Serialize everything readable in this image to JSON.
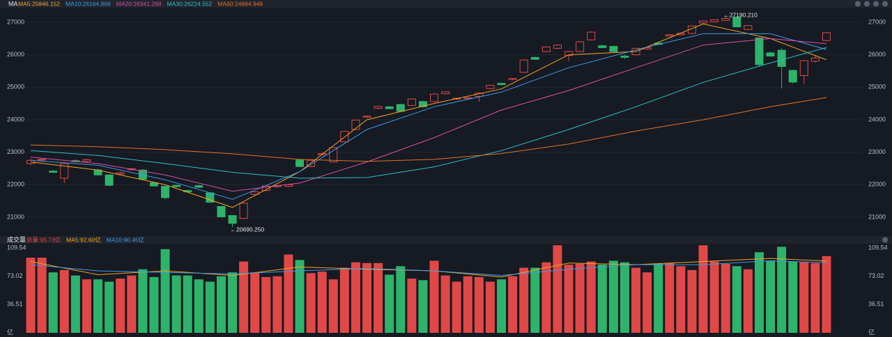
{
  "chart_data": [
    {
      "type": "candlestick",
      "title": "MA",
      "xlim": [
        -0.5,
        71.5
      ],
      "ylim": [
        20440,
        27430
      ],
      "yticks": [
        21000,
        22000,
        23000,
        24000,
        25000,
        26000,
        27000
      ],
      "grid": true,
      "up_color": "#e04848",
      "down_color": "#2eb36b",
      "open": [
        22650,
        22760,
        22420,
        22200,
        22740,
        22720,
        22450,
        22300,
        22330,
        22460,
        22450,
        22060,
        21950,
        21980,
        21820,
        21970,
        21750,
        21330,
        21050,
        20960,
        21700,
        21820,
        21940,
        21950,
        22760,
        22560,
        22920,
        22700,
        23320,
        23700,
        24080,
        24350,
        24400,
        24470,
        24440,
        24560,
        24560,
        24800,
        24640,
        24650,
        24720,
        24960,
        25120,
        25240,
        25460,
        25920,
        26100,
        26200,
        25980,
        26100,
        26460,
        26280,
        26260,
        25960,
        26000,
        26180,
        26360,
        26580,
        26620,
        26660,
        26980,
        27020,
        27060,
        27160,
        26780,
        26520,
        26060,
        26140,
        25520,
        25360,
        25800,
        26440
      ],
      "high": [
        22800,
        22800,
        22450,
        22700,
        22780,
        22800,
        22500,
        22320,
        22400,
        22520,
        22480,
        22080,
        21980,
        22000,
        21850,
        22000,
        21760,
        21340,
        21060,
        21450,
        21800,
        21980,
        21990,
        22020,
        22780,
        22770,
        22980,
        23160,
        23660,
        24010,
        24130,
        24430,
        24420,
        24490,
        24660,
        24590,
        24810,
        24880,
        24680,
        24700,
        24840,
        25080,
        25140,
        25290,
        25860,
        25940,
        26260,
        26320,
        26120,
        26420,
        26720,
        26300,
        26280,
        26000,
        26220,
        26240,
        26380,
        26640,
        26680,
        26910,
        27060,
        27090,
        27190.21,
        27170,
        26920,
        26540,
        26100,
        26200,
        25540,
        25840,
        25980,
        26700
      ],
      "low": [
        22600,
        22700,
        22360,
        22050,
        22680,
        22680,
        22280,
        21950,
        22300,
        22440,
        22150,
        21940,
        21550,
        21920,
        21760,
        21900,
        21440,
        20990,
        20690.25,
        20940,
        21680,
        21800,
        21900,
        21930,
        22540,
        22540,
        22900,
        22680,
        23300,
        23680,
        24060,
        24330,
        24320,
        24240,
        24420,
        24380,
        24540,
        24780,
        24600,
        24620,
        24550,
        24940,
        25060,
        25220,
        25440,
        25840,
        26080,
        26180,
        25800,
        26080,
        26440,
        26200,
        26080,
        25880,
        25980,
        26160,
        26300,
        26560,
        26600,
        26640,
        26960,
        27000,
        27040,
        26840,
        26760,
        25660,
        25940,
        24960,
        25120,
        25100,
        25760,
        26420
      ],
      "close": [
        22750,
        22780,
        22380,
        22650,
        22710,
        22770,
        22300,
        21980,
        22370,
        22490,
        22170,
        21960,
        21600,
        21940,
        21780,
        21920,
        21460,
        21010,
        20810,
        21430,
        21780,
        21960,
        21970,
        22000,
        22560,
        22750,
        22960,
        23140,
        23640,
        23990,
        24110,
        24410,
        24340,
        24260,
        24640,
        24400,
        24790,
        24860,
        24660,
        24680,
        24820,
        25060,
        25080,
        25270,
        25840,
        25860,
        26240,
        26300,
        26100,
        26400,
        26700,
        26220,
        26100,
        25920,
        26200,
        26220,
        26320,
        26620,
        26660,
        26890,
        27040,
        27080,
        27120,
        26860,
        26900,
        25700,
        25960,
        25640,
        25160,
        25820,
        25900,
        26680
      ],
      "series": [
        {
          "name": "MA5:25846.152",
          "color": "#f5a623",
          "x": [
            0,
            6,
            12,
            18,
            24,
            30,
            36,
            42,
            48,
            54,
            60,
            66,
            71
          ],
          "values": [
            22700,
            22450,
            22000,
            21300,
            22400,
            24000,
            24500,
            24950,
            26000,
            26100,
            26950,
            26500,
            25846.152
          ]
        },
        {
          "name": "MA10:26164.869",
          "color": "#3d9be9",
          "x": [
            0,
            6,
            12,
            18,
            24,
            30,
            36,
            42,
            48,
            54,
            60,
            66,
            71
          ],
          "values": [
            22750,
            22600,
            22150,
            21550,
            22400,
            23700,
            24400,
            24850,
            25600,
            26150,
            26650,
            26650,
            26164.869
          ]
        },
        {
          "name": "MA20:26341.268",
          "color": "#d94fa8",
          "x": [
            0,
            6,
            12,
            18,
            24,
            30,
            36,
            42,
            48,
            54,
            60,
            66,
            71
          ],
          "values": [
            22850,
            22650,
            22300,
            21800,
            22050,
            22700,
            23450,
            24300,
            24900,
            25600,
            26300,
            26500,
            26341.268
          ]
        },
        {
          "name": "MA30:26224.552",
          "color": "#2bc0c8",
          "x": [
            0,
            6,
            12,
            18,
            24,
            30,
            36,
            42,
            48,
            54,
            60,
            66,
            71
          ],
          "values": [
            23050,
            22900,
            22650,
            22380,
            22200,
            22220,
            22550,
            23050,
            23700,
            24400,
            25150,
            25750,
            26224.552
          ]
        },
        {
          "name": "MA60:24684.948",
          "color": "#e2722a",
          "x": [
            0,
            6,
            12,
            18,
            24,
            30,
            36,
            42,
            48,
            54,
            60,
            66,
            71
          ],
          "values": [
            23220,
            23170,
            23080,
            22950,
            22780,
            22720,
            22780,
            22960,
            23250,
            23650,
            24000,
            24400,
            24684.948
          ]
        }
      ],
      "annotations": [
        {
          "text": "←27190.210",
          "index": 62,
          "value": 27190.21
        },
        {
          "text": "←20690.250",
          "index": 18,
          "value": 20690.25
        }
      ]
    },
    {
      "type": "bar",
      "title": "成交量",
      "subtitle": "总量:95.73亿",
      "xlim": [
        -0.5,
        71.5
      ],
      "ylim": [
        0,
        115
      ],
      "yticks": [
        {
          "value": 0,
          "label": "亿"
        },
        36.51,
        73.02,
        109.54
      ],
      "up_color": "#e04848",
      "down_color": "#2eb36b",
      "values": [
        97,
        97,
        78,
        81,
        74,
        69,
        69,
        66,
        70,
        74,
        82,
        72,
        108,
        74,
        74,
        69,
        66,
        73,
        78,
        92,
        78,
        72,
        73,
        101,
        94,
        77,
        79,
        69,
        84,
        91,
        90,
        90,
        75,
        86,
        70,
        68,
        93,
        74,
        66,
        73,
        72,
        66,
        69,
        73,
        84,
        84,
        91,
        113,
        88,
        89,
        92,
        88,
        93,
        91,
        84,
        78,
        89,
        90,
        86,
        81,
        113,
        92,
        89,
        86,
        82,
        104,
        93,
        111,
        92,
        91,
        90,
        99
      ],
      "series": [
        {
          "name": "MA5:92.60亿",
          "color": "#f5a623",
          "x": [
            0,
            6,
            12,
            18,
            24,
            30,
            36,
            42,
            48,
            54,
            60,
            66,
            71
          ],
          "values": [
            92,
            75,
            80,
            74,
            85,
            82,
            80,
            72,
            90,
            88,
            92,
            96,
            92.6
          ]
        },
        {
          "name": "MA10:90.45亿",
          "color": "#3d9be9",
          "x": [
            0,
            6,
            12,
            18,
            24,
            30,
            36,
            42,
            48,
            54,
            60,
            66,
            71
          ],
          "values": [
            88,
            80,
            78,
            76,
            80,
            83,
            80,
            74,
            82,
            88,
            88,
            93,
            90.45
          ]
        }
      ]
    }
  ]
}
